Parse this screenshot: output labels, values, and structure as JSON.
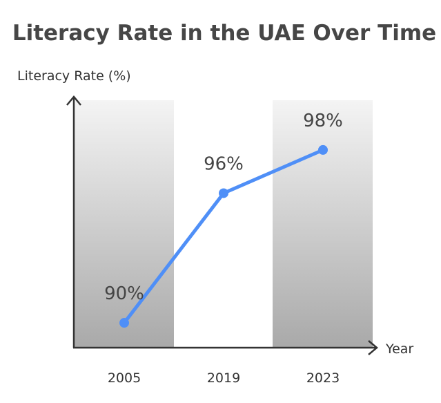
{
  "chart_data": {
    "type": "line",
    "title": "Literacy Rate in the UAE Over Time",
    "xlabel": "Year",
    "ylabel": "Literacy Rate (%)",
    "categories": [
      "2005",
      "2019",
      "2023"
    ],
    "series": [
      {
        "name": "Literacy Rate",
        "values": [
          90,
          96,
          98
        ]
      }
    ],
    "data_labels": [
      "90%",
      "96%",
      "98%"
    ],
    "ylim": [
      88.85,
      100.3
    ],
    "grid": false,
    "colors": {
      "line": "#4f8ff7",
      "title": "#464646",
      "axis": "#333333"
    }
  }
}
